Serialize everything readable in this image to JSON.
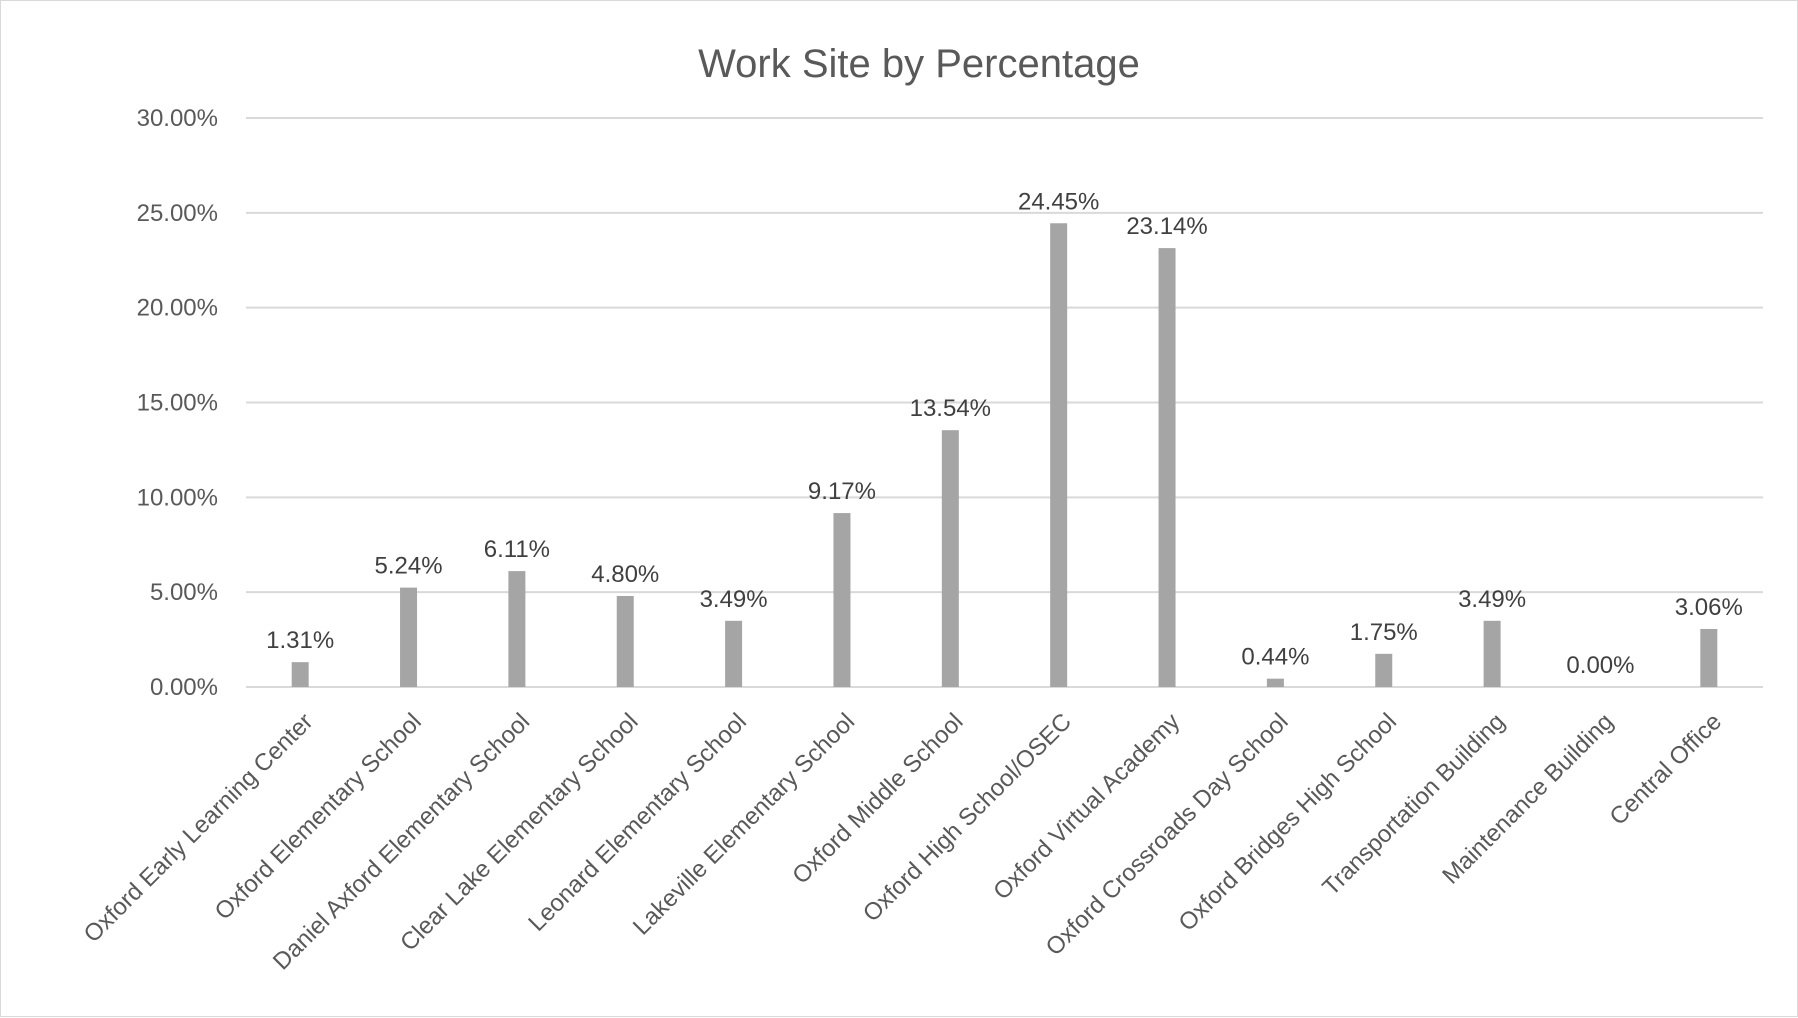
{
  "chart_data": {
    "type": "bar",
    "title": "Work Site by Percentage",
    "xlabel": "",
    "ylabel": "",
    "ylim": [
      0,
      30
    ],
    "yticks": [
      0,
      5,
      10,
      15,
      20,
      25,
      30
    ],
    "ytick_labels": [
      "0.00%",
      "5.00%",
      "10.00%",
      "15.00%",
      "20.00%",
      "25.00%",
      "30.00%"
    ],
    "grid": true,
    "legend": "none",
    "bar_color": "#a5a5a5",
    "categories": [
      "Oxford Early Learning Center",
      "Oxford Elementary School",
      "Daniel Axford Elementary School",
      "Clear Lake Elementary School",
      "Leonard Elementary School",
      "Lakeville Elementary School",
      "Oxford Middle School",
      "Oxford High School/OSEC",
      "Oxford Virtual Academy",
      "Oxford Crossroads Day School",
      "Oxford Bridges High School",
      "Transportation Building",
      "Maintenance Building",
      "Central Office"
    ],
    "values": [
      1.31,
      5.24,
      6.11,
      4.8,
      3.49,
      9.17,
      13.54,
      24.45,
      23.14,
      0.44,
      1.75,
      3.49,
      0.0,
      3.06
    ],
    "data_labels": [
      "1.31%",
      "5.24%",
      "6.11%",
      "4.80%",
      "3.49%",
      "9.17%",
      "13.54%",
      "24.45%",
      "23.14%",
      "0.44%",
      "1.75%",
      "3.49%",
      "0.00%",
      "3.06%"
    ]
  }
}
